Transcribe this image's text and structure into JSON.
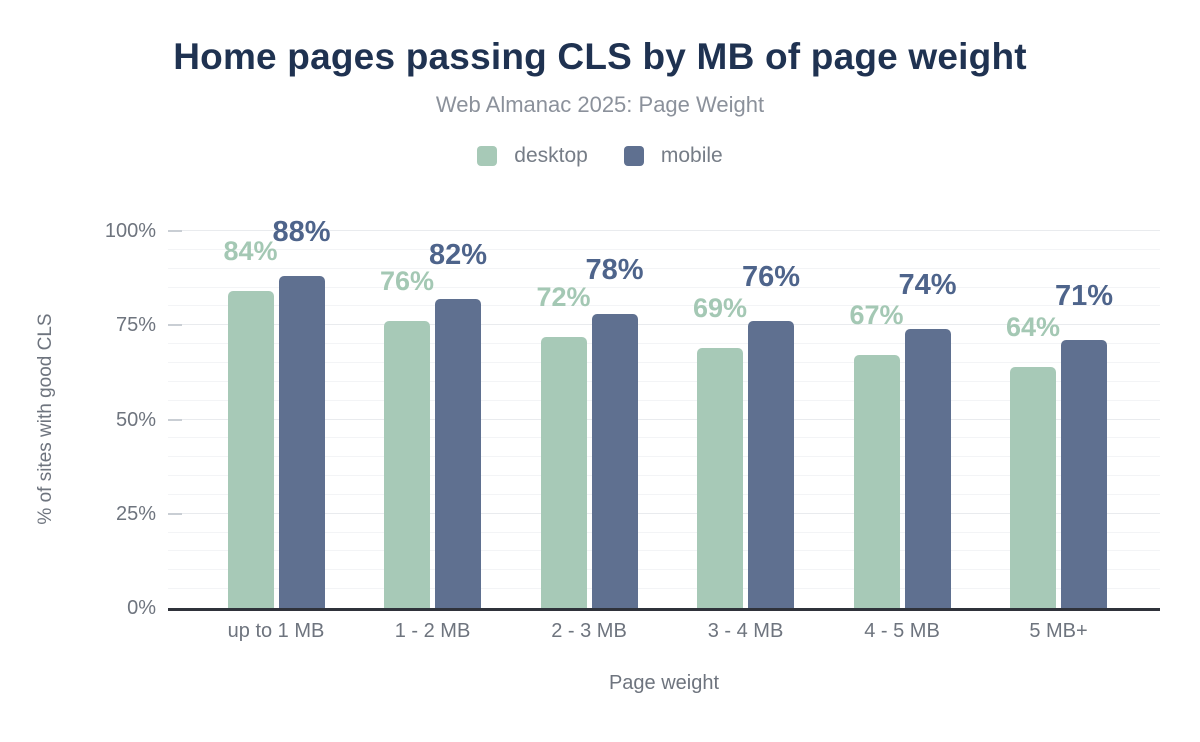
{
  "chart_data": {
    "type": "bar",
    "title": "Home pages passing CLS by MB of page weight",
    "subtitle": "Web Almanac 2025: Page Weight",
    "xlabel": "Page weight",
    "ylabel": "% of sites with good CLS",
    "categories": [
      "up to 1 MB",
      "1 - 2 MB",
      "2 - 3 MB",
      "3 - 4 MB",
      "4 - 5 MB",
      "5 MB+"
    ],
    "series": [
      {
        "name": "desktop",
        "color": "#a7c9b7",
        "label_color": "#a4c8b4",
        "values": [
          84,
          76,
          72,
          69,
          67,
          64
        ],
        "labels": [
          "84%",
          "76%",
          "72%",
          "69%",
          "67%",
          "64%"
        ]
      },
      {
        "name": "mobile",
        "color": "#5f7090",
        "label_color": "#4e648b",
        "values": [
          88,
          82,
          78,
          76,
          74,
          71
        ],
        "labels": [
          "88%",
          "82%",
          "78%",
          "76%",
          "74%",
          "71%"
        ]
      }
    ],
    "ylim": [
      0,
      100
    ],
    "y_ticks": [
      {
        "label": "0%",
        "value": 0
      },
      {
        "label": "25%",
        "value": 25
      },
      {
        "label": "50%",
        "value": 50
      },
      {
        "label": "75%",
        "value": 75
      },
      {
        "label": "100%",
        "value": 100
      }
    ],
    "grid": {
      "minor_step": 5,
      "major_step": 25,
      "orientation": "horizontal"
    },
    "legend_position": "top"
  },
  "colors": {
    "title": "#1f3251",
    "subtitle": "#8b919b",
    "axis_text": "#6e747e",
    "axis_line": "#2f323a",
    "gridline_minor": "#f3f4f6",
    "gridline_major": "#e9ebee",
    "background": "#ffffff"
  }
}
